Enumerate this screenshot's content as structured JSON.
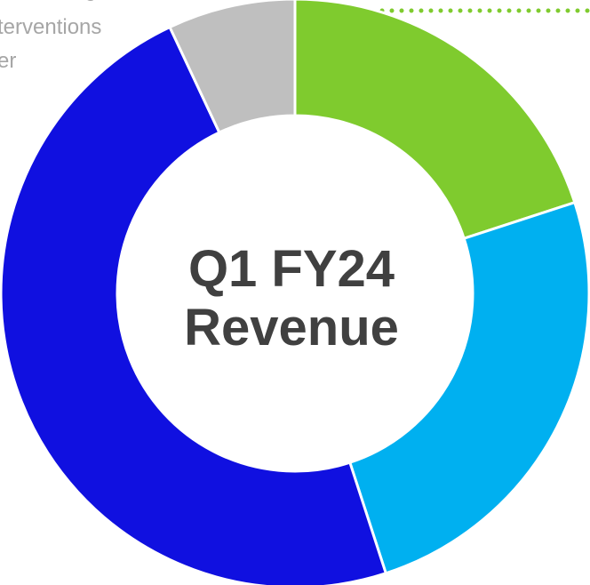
{
  "chart_data": {
    "type": "donut",
    "center_label": [
      "Q1 FY24",
      "Revenue"
    ],
    "annotations": [
      "nitoring",
      "terventions",
      "er"
    ],
    "values": [
      20,
      25,
      48,
      7
    ],
    "colors": [
      "#7fcb2e",
      "#00b0f0",
      "#1010e0",
      "#bfbfbf"
    ]
  }
}
